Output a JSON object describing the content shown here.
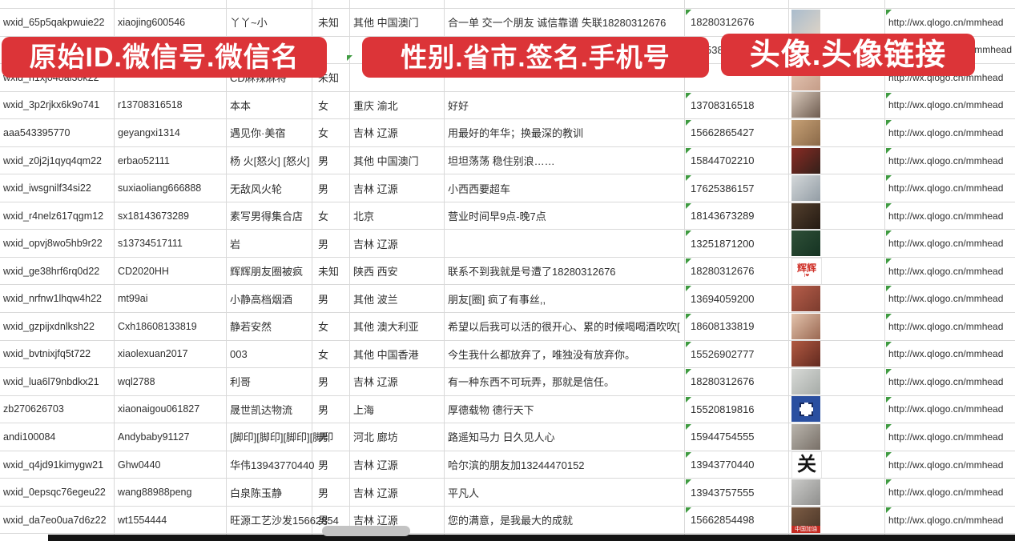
{
  "banners": [
    {
      "label": "原始ID.微信号.微信名"
    },
    {
      "label": "性别.省市.签名.手机号"
    },
    {
      "label": "头像.头像链接"
    }
  ],
  "colors": {
    "banner_red": "#dc3438",
    "banner_text": "#ffffff",
    "grid_line": "#d9d9d9",
    "cell_text": "#2f2f2f",
    "marker_green": "#3f9b41",
    "bottom_edge": "#141414"
  },
  "rows": [
    {
      "wxid": "wxid_65p5qakpwuie22",
      "weixin_id": "xiaojing600546",
      "nickname": "丫丫~小",
      "gender": "未知",
      "region": "其他 中国澳门",
      "signature": "合一单 交一个朋友 诚信靠谱 失联18280312676",
      "phone": "18280312676",
      "url": "http://wx.qlogo.cn/mmhead",
      "avatar": {
        "kind": "photo",
        "colors": [
          "#a9bccd",
          "#ddd3c6"
        ]
      }
    },
    {
      "wxid": "",
      "weixin_id": "",
      "nickname": "",
      "gender": "",
      "region": "",
      "signature": "",
      "phone": "5386",
      "phone_offset": true,
      "url": "/mmhead",
      "url_right": true,
      "avatar": {
        "kind": "photo",
        "colors": [
          "#8fa6bd",
          "#c2cdd8"
        ]
      }
    },
    {
      "wxid": "wxid_h1xj048al3ok22",
      "weixin_id": "",
      "nickname": "CD麻辣麻将",
      "gender": "未知",
      "region": "",
      "signature": "",
      "phone": "",
      "url": "http://wx.qlogo.cn/mmhead",
      "avatar": {
        "kind": "photo",
        "colors": [
          "#e6c8b6",
          "#c59d88"
        ]
      }
    },
    {
      "wxid": "wxid_3p2rjkx6k9o741",
      "weixin_id": "r13708316518",
      "nickname": "本本",
      "gender": "女",
      "region": "重庆 渝北",
      "signature": "好好",
      "phone": "13708316518",
      "url": "http://wx.qlogo.cn/mmhead",
      "avatar": {
        "kind": "photo",
        "colors": [
          "#d8c8ba",
          "#6e5c50"
        ]
      }
    },
    {
      "wxid": "aaa543395770",
      "weixin_id": "geyangxi1314",
      "nickname": "遇见你·美宿",
      "gender": "女",
      "region": "吉林 辽源",
      "signature": "用最好的年华；换最深的教训",
      "phone": "15662865427",
      "url": "http://wx.qlogo.cn/mmhead",
      "avatar": {
        "kind": "photo",
        "colors": [
          "#c7a176",
          "#8a6948"
        ]
      }
    },
    {
      "wxid": "wxid_z0j2j1qyq4qm22",
      "weixin_id": "erbao52111",
      "nickname": "杨 火[怒火] [怒火]",
      "gender": "男",
      "region": "其他 中国澳门",
      "signature": "坦坦荡荡 稳住别浪……",
      "phone": "15844702210",
      "url": "http://wx.qlogo.cn/mmhead",
      "avatar": {
        "kind": "photo",
        "colors": [
          "#8a2b24",
          "#33201a"
        ]
      }
    },
    {
      "wxid": "wxid_iwsgnilf34si22",
      "weixin_id": "suxiaoliang666888",
      "nickname": "无敌风火轮",
      "gender": "男",
      "region": "吉林 辽源",
      "signature": "小西西要超车",
      "phone": "17625386157",
      "url": "http://wx.qlogo.cn/mmhead",
      "avatar": {
        "kind": "photo",
        "colors": [
          "#d4d8da",
          "#939da5"
        ]
      }
    },
    {
      "wxid": "wxid_r4nelz617qgm12",
      "weixin_id": "sx18143673289",
      "nickname": "素写男得集合店",
      "gender": "女",
      "region": "北京",
      "signature": "营业时间早9点-晚7点",
      "phone": "18143673289",
      "url": "http://wx.qlogo.cn/mmhead",
      "avatar": {
        "kind": "photo",
        "colors": [
          "#54402e",
          "#241a12"
        ]
      }
    },
    {
      "wxid": "wxid_opvj8wo5hb9r22",
      "weixin_id": "s13734517111",
      "nickname": "岩",
      "gender": "男",
      "region": "吉林 辽源",
      "signature": "",
      "phone": "13251871200",
      "url": "http://wx.qlogo.cn/mmhead",
      "avatar": {
        "kind": "photo",
        "colors": [
          "#2f5038",
          "#153322"
        ]
      }
    },
    {
      "wxid": "wxid_ge38hrf6rq0d22",
      "weixin_id": "CD2020HH",
      "nickname": "辉辉朋友圈被疯",
      "gender": "未知",
      "region": "陕西 西安",
      "signature": "联系不到我就是号遭了18280312676",
      "phone": "18280312676",
      "url": "http://wx.qlogo.cn/mmhead",
      "avatar": {
        "kind": "text",
        "bg": "#ffffff",
        "text": "辉辉",
        "text_color": "#d0342c",
        "sub": "I❤"
      }
    },
    {
      "wxid": "wxid_nrfnw1lhqw4h22",
      "weixin_id": "mt99ai",
      "nickname": "小静高档烟酒",
      "gender": "男",
      "region": "其他 波兰",
      "signature": "朋友[圈] 疯了有事丝,,",
      "phone": "13694059200",
      "url": "http://wx.qlogo.cn/mmhead",
      "avatar": {
        "kind": "photo",
        "colors": [
          "#b65d4a",
          "#7c3c2e"
        ]
      }
    },
    {
      "wxid": "wxid_gzpijxdnlksh22",
      "weixin_id": "Cxh18608133819",
      "nickname": "静若安然",
      "gender": "女",
      "region": "其他 澳大利亚",
      "signature": "希望以后我可以活的很开心、累的时候喝喝酒吹吹[",
      "phone": "18608133819",
      "url": "http://wx.qlogo.cn/mmhead",
      "avatar": {
        "kind": "photo",
        "colors": [
          "#e3c3ac",
          "#9a6852"
        ]
      }
    },
    {
      "wxid": "wxid_bvtnixjfq5t722",
      "weixin_id": "xiaolexuan2017",
      "nickname": "003",
      "gender": "女",
      "region": "其他 中国香港",
      "signature": "今生我什么都放弃了，唯独没有放弃你。",
      "phone": "15526902777",
      "url": "http://wx.qlogo.cn/mmhead",
      "avatar": {
        "kind": "photo",
        "colors": [
          "#b25a42",
          "#61291f"
        ]
      }
    },
    {
      "wxid": "wxid_lua6l79nbdkx21",
      "weixin_id": "wql2788",
      "nickname": "利哥",
      "gender": "男",
      "region": "吉林 辽源",
      "signature": "有一种东西不可玩弄，那就是信任。",
      "phone": "18280312676",
      "url": "http://wx.qlogo.cn/mmhead",
      "avatar": {
        "kind": "photo",
        "colors": [
          "#d8dad7",
          "#a6aba7"
        ]
      }
    },
    {
      "wxid": "zb270626703",
      "weixin_id": "xiaonaigou061827",
      "nickname": "晟世凯达物流",
      "gender": "男",
      "region": "上海",
      "signature": "厚德载物 德行天下",
      "phone": "15520819816",
      "url": "http://wx.qlogo.cn/mmhead",
      "avatar": {
        "kind": "qr",
        "bg": "#2a4fa0"
      }
    },
    {
      "wxid": "andi100084",
      "weixin_id": "Andybaby91127",
      "nickname": "[脚印][脚印][脚印][脚印",
      "gender": "男",
      "region": "河北 廊坊",
      "signature": "路遥知马力 日久见人心",
      "phone": "15944754555",
      "url": "http://wx.qlogo.cn/mmhead",
      "avatar": {
        "kind": "photo",
        "colors": [
          "#bab5ad",
          "#787068"
        ]
      }
    },
    {
      "wxid": "wxid_q4jd91kimygw21",
      "weixin_id": "Ghw0440",
      "nickname": "华伟13943770440",
      "gender": "男",
      "region": "吉林 辽源",
      "signature": "哈尔滨的朋友加13244470152",
      "phone": "13943770440",
      "url": "http://wx.qlogo.cn/mmhead",
      "avatar": {
        "kind": "text",
        "bg": "#ffffff",
        "text": "关",
        "text_color": "#141414"
      }
    },
    {
      "wxid": "wxid_0epsqc76egeu22",
      "weixin_id": "wang88988peng",
      "nickname": "白泉陈玉静",
      "gender": "男",
      "region": "吉林 辽源",
      "signature": "平凡人",
      "phone": "13943757555",
      "url": "http://wx.qlogo.cn/mmhead",
      "avatar": {
        "kind": "photo",
        "colors": [
          "#cbcbc9",
          "#8f8f8d"
        ]
      }
    },
    {
      "wxid": "wxid_da7eo0ua7d6z22",
      "weixin_id": "wt1554444",
      "nickname": "旺源工艺沙发15662854",
      "gender": "男",
      "region": "吉林 辽源",
      "signature": "您的满意，是我最大的成就",
      "phone": "15662854498",
      "url": "http://wx.qlogo.cn/mmhead",
      "avatar": {
        "kind": "strip",
        "colors": [
          "#7d5d45",
          "#503a2b"
        ],
        "strip": "中国加油",
        "strip_bg": "#c42b22"
      }
    },
    {
      "wxid": "",
      "weixin_id": "",
      "nickname": "",
      "gender": "",
      "region": "",
      "signature": "",
      "phone": "",
      "url": "",
      "avatar": {
        "kind": "photo",
        "colors": [
          "#4a6fa5",
          "#2d4a77"
        ]
      }
    }
  ]
}
